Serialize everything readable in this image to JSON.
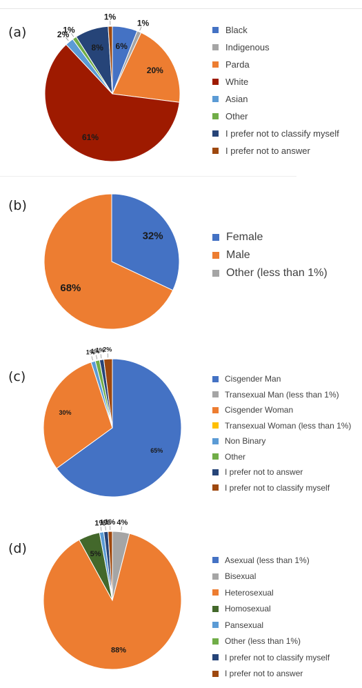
{
  "chart_data": [
    {
      "type": "pie",
      "panel_label": "(a)",
      "series": [
        {
          "name": "Black",
          "value": 6,
          "label": "6%",
          "color": "#4472c4"
        },
        {
          "name": "Indigenous",
          "value": 1,
          "label": "1%",
          "color": "#a5a5a5"
        },
        {
          "name": "Parda",
          "value": 20,
          "label": "20%",
          "color": "#ed7d31"
        },
        {
          "name": "White",
          "value": 61,
          "label": "61%",
          "color": "#9e1a00"
        },
        {
          "name": "Asian",
          "value": 2,
          "label": "2%",
          "color": "#5b9bd5"
        },
        {
          "name": "Other",
          "value": 1,
          "label": "1%",
          "color": "#70ad47"
        },
        {
          "name": "I prefer not to classify myself",
          "value": 8,
          "label": "8%",
          "color": "#264478"
        },
        {
          "name": "I prefer not to answer",
          "value": 1,
          "label": "1%",
          "color": "#9e480e"
        }
      ],
      "legend_position": "right"
    },
    {
      "type": "pie",
      "panel_label": "(b)",
      "series": [
        {
          "name": "Female",
          "value": 32,
          "label": "32%",
          "color": "#4472c4"
        },
        {
          "name": "Male",
          "value": 68,
          "label": "68%",
          "color": "#ed7d31"
        },
        {
          "name": "Other (less than 1%)",
          "value": 0,
          "label": "",
          "color": "#a5a5a5"
        }
      ],
      "legend_position": "right"
    },
    {
      "type": "pie",
      "panel_label": "(c)",
      "series": [
        {
          "name": "Cisgender Man",
          "value": 65,
          "label": "65%",
          "color": "#4472c4"
        },
        {
          "name": "Transexual Man (less than 1%)",
          "value": 0,
          "label": "",
          "color": "#a5a5a5"
        },
        {
          "name": "Cisgender Woman",
          "value": 30,
          "label": "30%",
          "color": "#ed7d31"
        },
        {
          "name": "Transexual Woman (less than 1%)",
          "value": 0,
          "label": "",
          "color": "#ffc000"
        },
        {
          "name": "Non Binary",
          "value": 1,
          "label": "1%",
          "color": "#5b9bd5"
        },
        {
          "name": "Other",
          "value": 1,
          "label": "1%",
          "color": "#70ad47"
        },
        {
          "name": "I prefer not to answer",
          "value": 1,
          "label": "1%",
          "color": "#264478"
        },
        {
          "name": "I prefer not to classify myself",
          "value": 2,
          "label": "2%",
          "color": "#9e480e"
        }
      ],
      "legend_position": "right"
    },
    {
      "type": "pie",
      "panel_label": "(d)",
      "series": [
        {
          "name": "Asexual (less than 1%)",
          "value": 0,
          "label": "",
          "color": "#4472c4"
        },
        {
          "name": "Bisexual",
          "value": 4,
          "label": "4%",
          "color": "#a5a5a5"
        },
        {
          "name": "Heterosexual",
          "value": 88,
          "label": "88%",
          "color": "#ed7d31"
        },
        {
          "name": "Homosexual",
          "value": 5,
          "label": "5%",
          "color": "#43682b"
        },
        {
          "name": "Pansexual",
          "value": 1,
          "label": "1%",
          "color": "#5b9bd5"
        },
        {
          "name": "Other (less than 1%)",
          "value": 0,
          "label": "",
          "color": "#70ad47"
        },
        {
          "name": "I prefer not to classify myself",
          "value": 1,
          "label": "1%",
          "color": "#264478"
        },
        {
          "name": "I prefer not to answer",
          "value": 1,
          "label": "1%",
          "color": "#9e480e"
        }
      ],
      "legend_position": "right"
    }
  ]
}
